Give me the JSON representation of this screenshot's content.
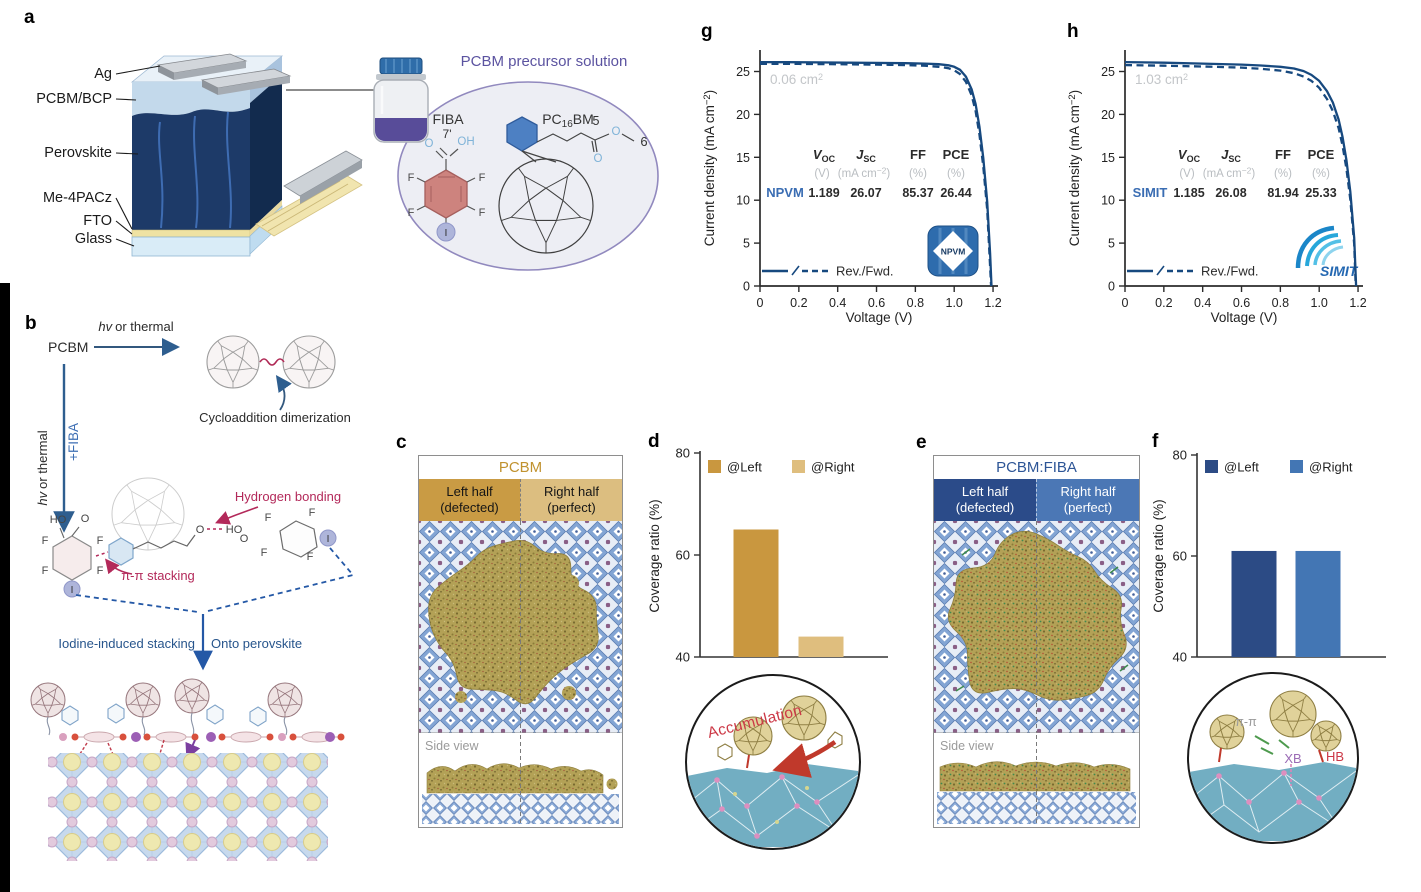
{
  "panel_labels": {
    "a": "a",
    "b": "b",
    "c": "c",
    "d": "d",
    "e": "e",
    "f": "f",
    "g": "g",
    "h": "h"
  },
  "panel_a": {
    "layers": [
      "Ag",
      "PCBM/BCP",
      "Perovskite",
      "Me-4PACz",
      "FTO",
      "Glass"
    ],
    "solution_title": "PCBM precursor solution",
    "fiba_label": "FIBA",
    "fiba_pos": "7'",
    "pc16bm_pre": "PC",
    "pc16bm_sub": "16",
    "pc16bm_post": "BM",
    "chain_5": "5",
    "chain_6": "6",
    "atom_o": "O",
    "atom_oh": "OH",
    "atom_f": "F",
    "atom_i": "I"
  },
  "panel_b": {
    "pcbm": "PCBM",
    "hv": "hv",
    "or_thermal": "or thermal",
    "plus_fiba": "+FIBA",
    "cycloaddition": "Cycloaddition dimerization",
    "hydrogen_bonding": "Hydrogen bonding",
    "pi_stacking": "π-π stacking",
    "iodine_stacking": "Iodine-induced stacking",
    "onto_perovskite": "Onto perovskite",
    "atom_ho": "HO",
    "atom_o": "O",
    "atom_f": "F",
    "atom_i": "I",
    "atom_oh": "OH"
  },
  "panel_c": {
    "title": "PCBM",
    "left_line1": "Left half",
    "left_line2": "(defected)",
    "right_line1": "Right half",
    "right_line2": "(perfect)",
    "side_view": "Side view"
  },
  "panel_d": {
    "annotation": "Accumulation"
  },
  "panel_e": {
    "title": "PCBM:FIBA",
    "left_line1": "Left half",
    "left_line2": "(defected)",
    "right_line1": "Right half",
    "right_line2": "(perfect)",
    "side_view": "Side view"
  },
  "panel_f": {
    "pi_pi": "π-π",
    "xb": "XB",
    "hb": "HB"
  },
  "jv_shared": {
    "legend": "Rev./Fwd.",
    "voc_base": "V",
    "voc_sub": "OC",
    "jsc_base": "J",
    "jsc_sub": "SC",
    "ff": "FF",
    "pce": "PCE",
    "unit_v": "(V)",
    "unit_j_pre": "(mA cm",
    "unit_j_sup": "−2",
    "unit_j_post": ")",
    "unit_pct": "(%)",
    "ylabel_pre": "Current density (mA cm",
    "ylabel_sup": "−2",
    "ylabel_post": ")",
    "xlabel": "Voltage (V)"
  },
  "chart_data": [
    {
      "id": "chart-d",
      "type": "bar",
      "panel": "d",
      "categories": [
        "@Left",
        "@Right"
      ],
      "values": [
        65,
        44
      ],
      "colors": [
        "#c9973f",
        "#dfbe7e"
      ],
      "ylabel": "Coverage ratio (%)",
      "ylim": [
        40,
        80
      ],
      "yticks": [
        40,
        60,
        80
      ],
      "legend_position": "top"
    },
    {
      "id": "chart-f",
      "type": "bar",
      "panel": "f",
      "categories": [
        "@Left",
        "@Right"
      ],
      "values": [
        61,
        61
      ],
      "colors": [
        "#2c4b85",
        "#4376b4"
      ],
      "ylabel": "Coverage ratio (%)",
      "ylim": [
        40,
        80
      ],
      "yticks": [
        40,
        60,
        80
      ],
      "legend_position": "top"
    },
    {
      "id": "chart-g",
      "type": "line",
      "panel": "g",
      "device": "NPVM",
      "area_pre": "0.06 cm",
      "area_sup": "2",
      "xlabel": "Voltage (V)",
      "ylabel": "Current density (mA cm−2)",
      "xlim": [
        0,
        1.2
      ],
      "ylim": [
        0,
        27.5
      ],
      "xticks": [
        "0",
        "0.2",
        "0.4",
        "0.6",
        "0.8",
        "1.0",
        "1.2"
      ],
      "yticks": [
        0,
        5,
        10,
        15,
        20,
        25
      ],
      "metrics": {
        "voc": "1.189",
        "jsc": "26.07",
        "ff": "85.37",
        "pce": "26.44"
      },
      "series": [
        {
          "name": "Rev.",
          "style": "solid",
          "points": [
            [
              0,
              26.1
            ],
            [
              0.15,
              26.08
            ],
            [
              0.3,
              26.06
            ],
            [
              0.45,
              26.03
            ],
            [
              0.6,
              26.0
            ],
            [
              0.75,
              25.97
            ],
            [
              0.85,
              25.92
            ],
            [
              0.92,
              25.85
            ],
            [
              0.97,
              25.72
            ],
            [
              1.0,
              25.55
            ],
            [
              1.03,
              25.2
            ],
            [
              1.06,
              24.4
            ],
            [
              1.09,
              22.9
            ],
            [
              1.11,
              21.2
            ],
            [
              1.13,
              18.6
            ],
            [
              1.15,
              14.9
            ],
            [
              1.17,
              9.8
            ],
            [
              1.185,
              3.8
            ],
            [
              1.192,
              0
            ]
          ]
        },
        {
          "name": "Fwd.",
          "style": "dashed",
          "points": [
            [
              0,
              25.9
            ],
            [
              0.2,
              25.88
            ],
            [
              0.4,
              25.85
            ],
            [
              0.6,
              25.8
            ],
            [
              0.75,
              25.75
            ],
            [
              0.85,
              25.68
            ],
            [
              0.92,
              25.55
            ],
            [
              0.97,
              25.38
            ],
            [
              1.0,
              25.15
            ],
            [
              1.03,
              24.7
            ],
            [
              1.06,
              23.8
            ],
            [
              1.09,
              22.2
            ],
            [
              1.11,
              20.4
            ],
            [
              1.13,
              17.7
            ],
            [
              1.15,
              13.9
            ],
            [
              1.17,
              8.9
            ],
            [
              1.183,
              3.2
            ],
            [
              1.19,
              0
            ]
          ]
        }
      ]
    },
    {
      "id": "chart-h",
      "type": "line",
      "panel": "h",
      "device": "SIMIT",
      "area_pre": "1.03 cm",
      "area_sup": "2",
      "xlabel": "Voltage (V)",
      "ylabel": "Current density (mA cm−2)",
      "xlim": [
        0,
        1.2
      ],
      "ylim": [
        0,
        27.5
      ],
      "xticks": [
        "0",
        "0.2",
        "0.4",
        "0.6",
        "0.8",
        "1.0",
        "1.2"
      ],
      "yticks": [
        0,
        5,
        10,
        15,
        20,
        25
      ],
      "metrics": {
        "voc": "1.185",
        "jsc": "26.08",
        "ff": "81.94",
        "pce": "25.33"
      },
      "series": [
        {
          "name": "Rev.",
          "style": "solid",
          "points": [
            [
              0,
              26.1
            ],
            [
              0.2,
              26.02
            ],
            [
              0.4,
              25.92
            ],
            [
              0.6,
              25.8
            ],
            [
              0.7,
              25.7
            ],
            [
              0.8,
              25.55
            ],
            [
              0.87,
              25.35
            ],
            [
              0.92,
              25.05
            ],
            [
              0.96,
              24.6
            ],
            [
              1.0,
              23.9
            ],
            [
              1.04,
              22.7
            ],
            [
              1.07,
              21.4
            ],
            [
              1.1,
              19.4
            ],
            [
              1.12,
              17.4
            ],
            [
              1.14,
              14.7
            ],
            [
              1.16,
              11.0
            ],
            [
              1.18,
              5.6
            ],
            [
              1.19,
              0
            ]
          ]
        },
        {
          "name": "Fwd.",
          "style": "dashed",
          "points": [
            [
              0,
              25.75
            ],
            [
              0.2,
              25.68
            ],
            [
              0.4,
              25.58
            ],
            [
              0.6,
              25.45
            ],
            [
              0.7,
              25.32
            ],
            [
              0.8,
              25.1
            ],
            [
              0.87,
              24.8
            ],
            [
              0.92,
              24.4
            ],
            [
              0.96,
              23.9
            ],
            [
              1.0,
              23.1
            ],
            [
              1.04,
              21.8
            ],
            [
              1.07,
              20.4
            ],
            [
              1.1,
              18.4
            ],
            [
              1.12,
              16.4
            ],
            [
              1.14,
              13.7
            ],
            [
              1.16,
              10.1
            ],
            [
              1.18,
              4.9
            ],
            [
              1.188,
              0
            ]
          ]
        }
      ]
    }
  ]
}
